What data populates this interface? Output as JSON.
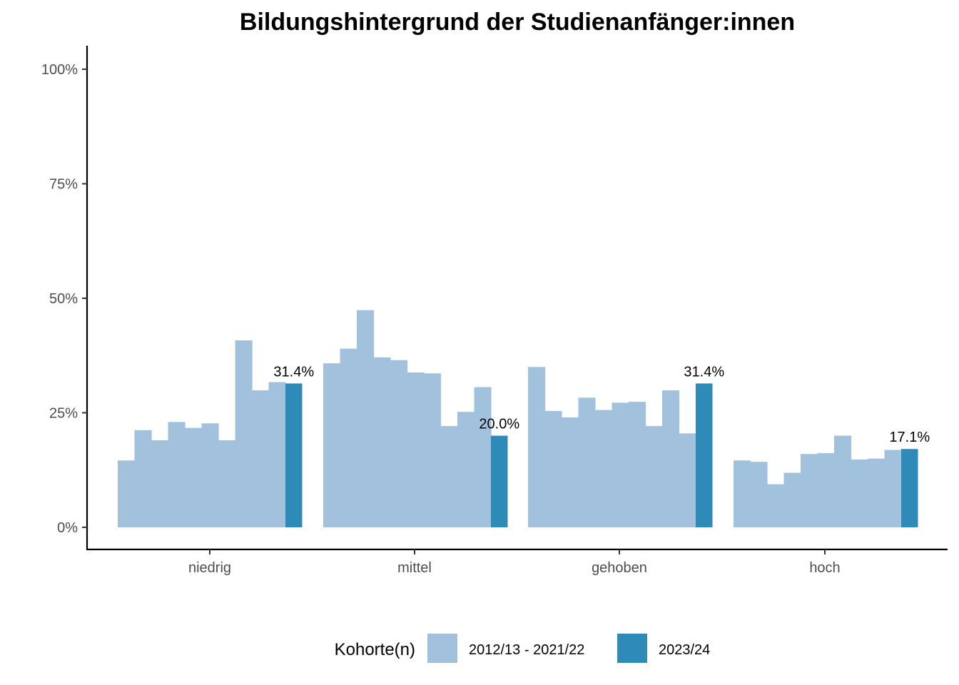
{
  "chart_data": {
    "type": "bar",
    "title": "Bildungshintergrund der Studienanfänger:innen",
    "xlabel": "",
    "ylabel": "",
    "ylim": [
      0,
      1.05
    ],
    "y_ticks": [
      0,
      0.25,
      0.5,
      0.75,
      1.0
    ],
    "y_tick_labels": [
      "0%",
      "25%",
      "50%",
      "75%",
      "100%"
    ],
    "categories": [
      "niedrig",
      "mittel",
      "gehoben",
      "hoch"
    ],
    "grid": false,
    "legend_position": "bottom",
    "legend_title": "Kohorte(n)",
    "series": [
      {
        "name": "2012/13 - 2021/22",
        "color": "#a1c1dd",
        "values": [
          [
            0.146,
            0.212,
            0.19,
            0.23,
            0.217,
            0.227,
            0.19,
            0.408,
            0.299,
            0.317
          ],
          [
            0.358,
            0.39,
            0.474,
            0.371,
            0.365,
            0.338,
            0.336,
            0.221,
            0.252,
            0.306
          ],
          [
            0.35,
            0.254,
            0.24,
            0.283,
            0.256,
            0.272,
            0.274,
            0.221,
            0.299,
            0.205
          ],
          [
            0.146,
            0.143,
            0.094,
            0.119,
            0.16,
            0.162,
            0.2,
            0.148,
            0.15,
            0.169
          ]
        ]
      },
      {
        "name": "2023/24",
        "color": "#2e8bb8",
        "values": [
          0.314,
          0.2,
          0.314,
          0.171
        ],
        "labels": [
          "31.4%",
          "20.0%",
          "31.4%",
          "17.1%"
        ]
      }
    ]
  }
}
